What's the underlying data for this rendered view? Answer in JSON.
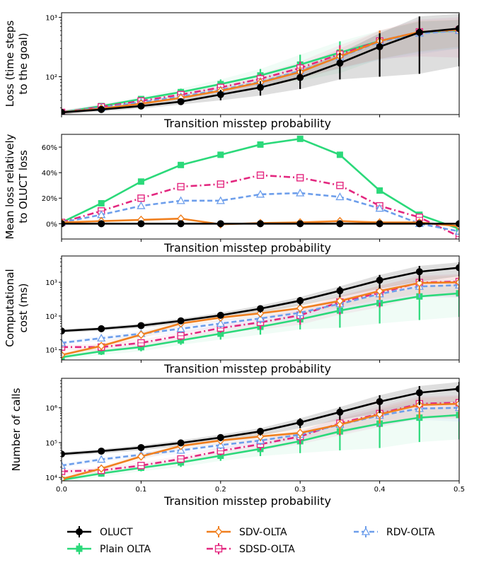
{
  "legend": [
    {
      "name": "OLUCT",
      "color": "#000000",
      "marker": "circle",
      "dash": "solid"
    },
    {
      "name": "SDV-OLTA",
      "color": "#f07f1e",
      "marker": "diamond",
      "dash": "solid"
    },
    {
      "name": "RDV-OLTA",
      "color": "#6d9eeb",
      "marker": "triangle",
      "dash": "dashed"
    },
    {
      "name": "Plain OLTA",
      "color": "#2bd97a",
      "marker": "square",
      "dash": "solid"
    },
    {
      "name": "SDSD-OLTA",
      "color": "#e3277f",
      "marker": "square-open",
      "dash": "dashdot"
    }
  ],
  "chart_data": [
    {
      "type": "line",
      "xlabel": "Transition misstep probability",
      "ylabel": [
        "Loss (time steps",
        "to the goal)"
      ],
      "yscale": "log",
      "xlim": [
        0,
        0.5
      ],
      "ylim": [
        23,
        1200
      ],
      "yticks": [
        {
          "v": 100,
          "label": "10²"
        },
        {
          "v": 1000,
          "label": "10³"
        }
      ],
      "show_xticklabels": false,
      "x": [
        0,
        0.05,
        0.1,
        0.15,
        0.2,
        0.25,
        0.3,
        0.35,
        0.4,
        0.45,
        0.5
      ],
      "series": [
        {
          "name": "OLUCT",
          "values": [
            25,
            28,
            32,
            38,
            50,
            66,
            97,
            170,
            320,
            560,
            650
          ],
          "err": [
            2,
            2,
            3,
            4,
            10,
            18,
            35,
            80,
            220,
            480,
            500
          ]
        },
        {
          "name": "SDV-OLTA",
          "values": [
            25,
            29,
            35,
            44,
            58,
            80,
            120,
            220,
            400,
            570,
            620
          ],
          "err": [
            2,
            2,
            3,
            5,
            8,
            15,
            30,
            80,
            200,
            300,
            300
          ]
        },
        {
          "name": "RDV-OLTA",
          "values": [
            25,
            30,
            37,
            46,
            60,
            82,
            125,
            215,
            390,
            540,
            600
          ],
          "err": [
            2,
            2,
            3,
            5,
            8,
            15,
            30,
            80,
            200,
            300,
            300
          ]
        },
        {
          "name": "Plain OLTA",
          "values": [
            25,
            32,
            42,
            55,
            75,
            105,
            160,
            255,
            400,
            560,
            600
          ],
          "err": [
            2,
            3,
            4,
            8,
            15,
            30,
            75,
            140,
            200,
            300,
            300
          ]
        },
        {
          "name": "SDSD-OLTA",
          "values": [
            25,
            31,
            39,
            50,
            66,
            92,
            140,
            240,
            400,
            570,
            610
          ],
          "err": [
            2,
            3,
            4,
            6,
            10,
            20,
            40,
            100,
            200,
            350,
            400
          ]
        }
      ]
    },
    {
      "type": "line",
      "xlabel": "Transition misstep probability",
      "ylabel": [
        "Mean loss relatively",
        "to OLUCT loss"
      ],
      "yscale": "linear",
      "xlim": [
        0,
        0.5
      ],
      "ylim": [
        -0.12,
        0.7
      ],
      "yticks": [
        {
          "v": 0,
          "label": "0%"
        },
        {
          "v": 0.2,
          "label": "20%"
        },
        {
          "v": 0.4,
          "label": "40%"
        },
        {
          "v": 0.6,
          "label": "60%"
        }
      ],
      "show_xticklabels": false,
      "x": [
        0,
        0.05,
        0.1,
        0.15,
        0.2,
        0.25,
        0.3,
        0.35,
        0.4,
        0.45,
        0.5
      ],
      "series": [
        {
          "name": "OLUCT",
          "values": [
            0,
            0,
            0,
            0,
            0,
            0,
            0,
            0,
            0,
            0,
            0
          ]
        },
        {
          "name": "SDV-OLTA",
          "values": [
            0.01,
            0.02,
            0.03,
            0.04,
            -0.005,
            0.005,
            0.01,
            0.02,
            0.01,
            0.01,
            -0.02
          ]
        },
        {
          "name": "RDV-OLTA",
          "values": [
            0.01,
            0.07,
            0.14,
            0.18,
            0.18,
            0.23,
            0.24,
            0.21,
            0.12,
            0.0,
            -0.06
          ]
        },
        {
          "name": "Plain OLTA",
          "values": [
            0.01,
            0.16,
            0.33,
            0.46,
            0.54,
            0.62,
            0.665,
            0.54,
            0.26,
            0.07,
            -0.04
          ]
        },
        {
          "name": "SDSD-OLTA",
          "values": [
            0.01,
            0.1,
            0.2,
            0.29,
            0.31,
            0.38,
            0.36,
            0.3,
            0.14,
            0.05,
            -0.1
          ]
        }
      ]
    },
    {
      "type": "line",
      "xlabel": "Transition misstep probability",
      "ylabel": [
        "Computational",
        "cost (ms)"
      ],
      "yscale": "log",
      "xlim": [
        0,
        0.5
      ],
      "ylim": [
        5,
        6000
      ],
      "yticks": [
        {
          "v": 10,
          "label": "10¹"
        },
        {
          "v": 100,
          "label": "10²"
        },
        {
          "v": 1000,
          "label": "10³"
        }
      ],
      "show_xticklabels": false,
      "x": [
        0,
        0.05,
        0.1,
        0.15,
        0.2,
        0.25,
        0.3,
        0.35,
        0.4,
        0.45,
        0.5
      ],
      "series": [
        {
          "name": "OLUCT",
          "values": [
            36,
            42,
            52,
            72,
            105,
            165,
            285,
            560,
            1150,
            2050,
            2700
          ],
          "err": [
            4,
            5,
            8,
            12,
            20,
            40,
            80,
            200,
            500,
            1000,
            1200
          ]
        },
        {
          "name": "SDV-OLTA",
          "values": [
            7,
            13,
            28,
            60,
            90,
            120,
            170,
            280,
            550,
            950,
            1000
          ],
          "err": [
            1,
            3,
            6,
            12,
            20,
            30,
            50,
            100,
            250,
            500,
            600
          ]
        },
        {
          "name": "RDV-OLTA",
          "values": [
            16,
            22,
            30,
            42,
            60,
            85,
            125,
            230,
            450,
            750,
            820
          ],
          "err": [
            2,
            4,
            6,
            10,
            15,
            25,
            45,
            100,
            200,
            400,
            450
          ]
        },
        {
          "name": "Plain OLTA",
          "values": [
            6,
            9,
            12,
            19,
            30,
            48,
            80,
            145,
            240,
            380,
            470
          ],
          "err": [
            1,
            2,
            3,
            5,
            10,
            20,
            40,
            100,
            180,
            330,
            420
          ]
        },
        {
          "name": "SDSD-OLTA",
          "values": [
            12,
            12,
            16,
            26,
            44,
            65,
            105,
            260,
            480,
            980,
            1050
          ],
          "err": [
            2,
            3,
            4,
            7,
            12,
            25,
            50,
            150,
            300,
            600,
            700
          ]
        }
      ]
    },
    {
      "type": "line",
      "xlabel": "Transition misstep probability",
      "ylabel": [
        "Number of calls"
      ],
      "yscale": "log",
      "xlim": [
        0,
        0.5
      ],
      "ylim": [
        8000,
        7000000
      ],
      "yticks": [
        {
          "v": 10000,
          "label": "10⁴"
        },
        {
          "v": 100000,
          "label": "10⁵"
        },
        {
          "v": 1000000,
          "label": "10⁶"
        }
      ],
      "show_xticklabels": true,
      "xticks": [
        "0.0",
        "0.1",
        "0.2",
        "0.3",
        "0.4",
        "0.5"
      ],
      "x": [
        0,
        0.05,
        0.1,
        0.15,
        0.2,
        0.25,
        0.3,
        0.35,
        0.4,
        0.45,
        0.5
      ],
      "series": [
        {
          "name": "OLUCT",
          "values": [
            47000,
            57000,
            72000,
            98000,
            140000,
            210000,
            380000,
            750000,
            1500000,
            2700000,
            3500000
          ],
          "err": [
            6000,
            8000,
            12000,
            18000,
            30000,
            50000,
            120000,
            300000,
            800000,
            1500000,
            2000000
          ]
        },
        {
          "name": "SDV-OLTA",
          "values": [
            9000,
            18000,
            40000,
            80000,
            115000,
            150000,
            190000,
            330000,
            650000,
            1200000,
            1300000
          ],
          "err": [
            1500,
            3000,
            8000,
            15000,
            25000,
            40000,
            60000,
            150000,
            300000,
            700000,
            800000
          ]
        },
        {
          "name": "RDV-OLTA",
          "values": [
            22000,
            33000,
            45000,
            60000,
            85000,
            115000,
            170000,
            330000,
            600000,
            950000,
            1000000
          ],
          "err": [
            3000,
            5000,
            8000,
            12000,
            20000,
            30000,
            50000,
            150000,
            300000,
            500000,
            600000
          ]
        },
        {
          "name": "Plain OLTA",
          "values": [
            8500,
            13000,
            19000,
            27000,
            42000,
            66000,
            110000,
            210000,
            350000,
            520000,
            620000
          ],
          "err": [
            1500,
            2500,
            4000,
            7000,
            12000,
            25000,
            60000,
            150000,
            280000,
            430000,
            500000
          ]
        },
        {
          "name": "SDSD-OLTA",
          "values": [
            15000,
            16000,
            22000,
            34000,
            58000,
            90000,
            150000,
            360000,
            680000,
            1300000,
            1400000
          ],
          "err": [
            2500,
            3000,
            5000,
            8000,
            15000,
            30000,
            60000,
            200000,
            400000,
            800000,
            900000
          ]
        }
      ]
    }
  ]
}
